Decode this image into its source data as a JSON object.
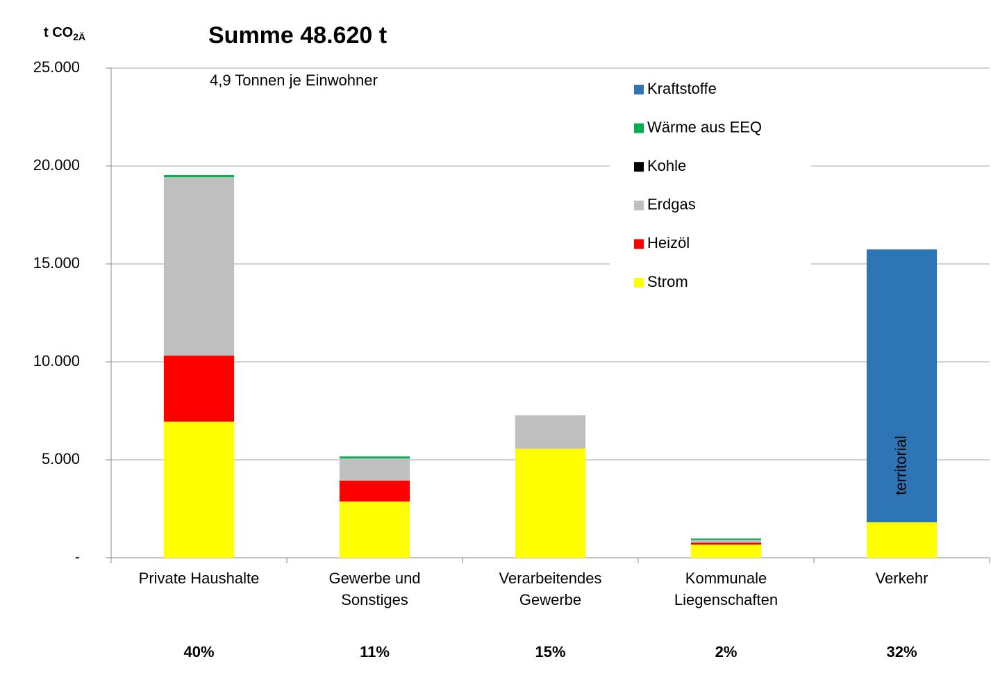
{
  "chart_data": {
    "type": "stacked_bar",
    "title": "Summe 48.620 t",
    "subtitle": "4,9 Tonnen je Einwohner",
    "ylabel": "t CO",
    "ylabel_subscript": "2Ä",
    "annotation": "territorial",
    "categories": [
      "Private Haushalte",
      "Gewerbe und\nSonstiges",
      "Verarbeitendes\nGewerbe",
      "Kommunale\nLiegenschaften",
      "Verkehr"
    ],
    "share_labels": [
      "40%",
      "11%",
      "15%",
      "2%",
      "32%"
    ],
    "series": [
      {
        "name": "Strom",
        "color": "#ffff00",
        "values": [
          6950,
          2870,
          5570,
          670,
          1810
        ]
      },
      {
        "name": "Heizöl",
        "color": "#ff0000",
        "values": [
          3370,
          1070,
          0,
          100,
          0
        ]
      },
      {
        "name": "Erdgas",
        "color": "#bfbfbf",
        "values": [
          9110,
          1130,
          1700,
          140,
          0
        ]
      },
      {
        "name": "Kohle",
        "color": "#000000",
        "values": [
          0,
          0,
          0,
          0,
          0
        ]
      },
      {
        "name": "Wärme aus EEQ",
        "color": "#00b050",
        "values": [
          110,
          100,
          0,
          70,
          0
        ]
      },
      {
        "name": "Kraftstoffe",
        "color": "#2e75b6",
        "values": [
          0,
          0,
          0,
          0,
          13930
        ]
      }
    ],
    "ylim": [
      0,
      25000
    ],
    "yticks": [
      {
        "value": 0,
        "label": "-"
      },
      {
        "value": 5000,
        "label": "5.000"
      },
      {
        "value": 10000,
        "label": "10.000"
      },
      {
        "value": 15000,
        "label": "15.000"
      },
      {
        "value": 20000,
        "label": "20.000"
      },
      {
        "value": 25000,
        "label": "25.000"
      }
    ],
    "grid": true,
    "legend": "upper right"
  }
}
